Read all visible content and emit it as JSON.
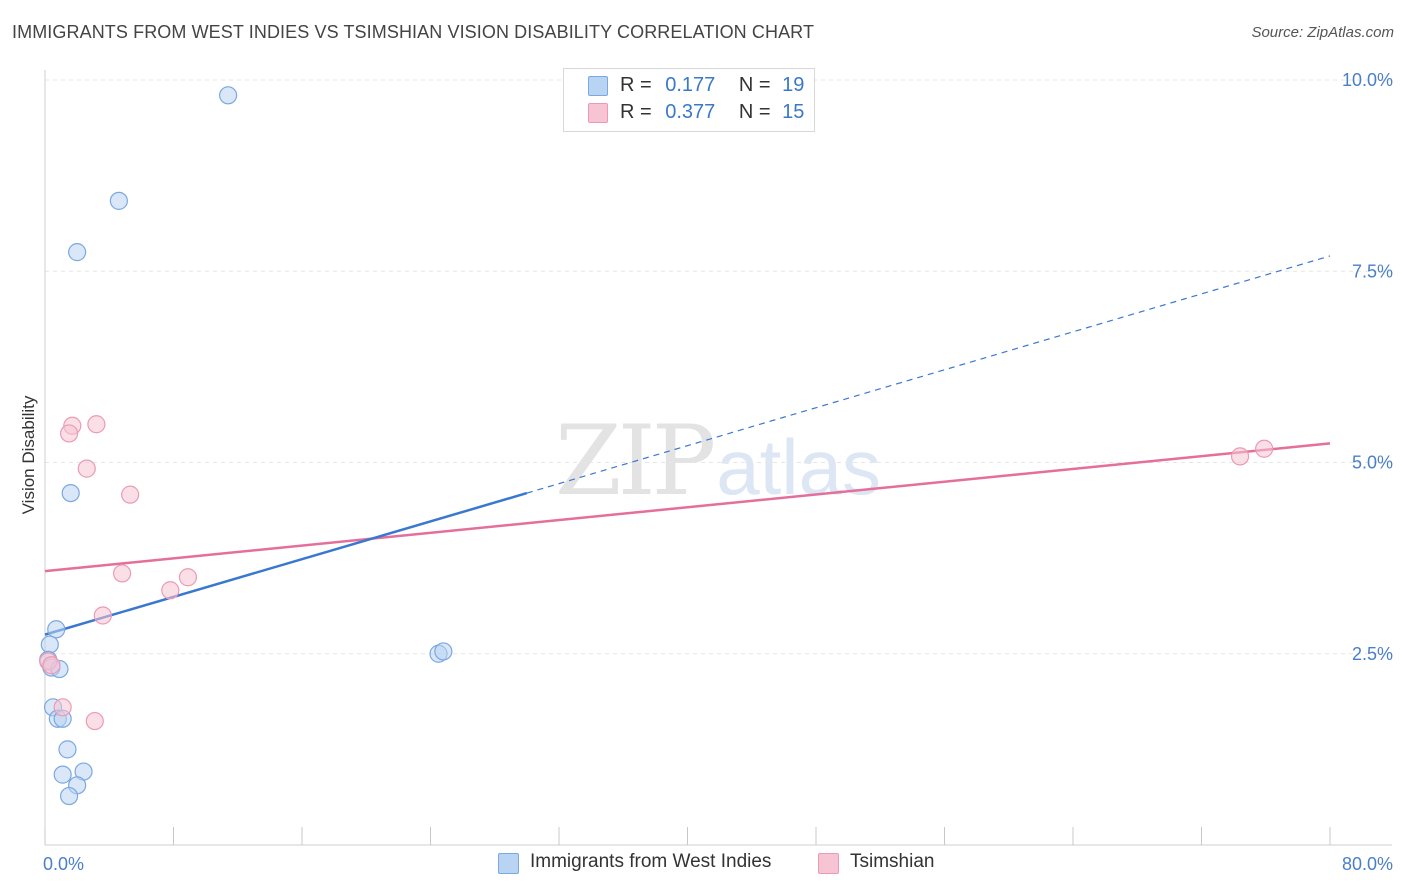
{
  "title": "IMMIGRANTS FROM WEST INDIES VS TSIMSHIAN VISION DISABILITY CORRELATION CHART",
  "source": "Source: ZipAtlas.com",
  "watermark": {
    "zip": "ZIP",
    "atlas": "atlas"
  },
  "legend": {
    "r_label": "R =",
    "n_label": "N =",
    "rows": [
      {
        "r": "0.177",
        "n": "19"
      },
      {
        "r": "0.377",
        "n": "15"
      }
    ]
  },
  "colors": {
    "blue_fill": "#b9d3f3",
    "blue_stroke": "#7aa8e0",
    "blue_line": "#3a78d0",
    "pink_fill": "#f7c4d3",
    "pink_stroke": "#ec9ab4",
    "pink_line": "#e46f9a",
    "grid": "#e6e6e6",
    "tick_text": "#4a7fc8"
  },
  "chart_data": {
    "type": "scatter",
    "title": "IMMIGRANTS FROM WEST INDIES VS TSIMSHIAN VISION DISABILITY CORRELATION CHART",
    "xlabel": "",
    "ylabel": "Vision Disability",
    "xlim": [
      0,
      80
    ],
    "ylim": [
      0,
      10
    ],
    "x_tick_labels": [
      "0.0%",
      "80.0%"
    ],
    "y_ticks": [
      2.5,
      5.0,
      7.5,
      10.0
    ],
    "y_tick_labels": [
      "2.5%",
      "5.0%",
      "7.5%",
      "10.0%"
    ],
    "grid": true,
    "legend_position": "top-center",
    "series": [
      {
        "name": "Immigrants from West Indies",
        "color": "blue",
        "points": [
          [
            11.4,
            9.8
          ],
          [
            4.6,
            8.42
          ],
          [
            2.0,
            7.75
          ],
          [
            1.6,
            4.6
          ],
          [
            0.7,
            2.82
          ],
          [
            0.3,
            2.62
          ],
          [
            0.2,
            2.42
          ],
          [
            0.4,
            2.32
          ],
          [
            0.9,
            2.3
          ],
          [
            0.5,
            1.8
          ],
          [
            0.8,
            1.65
          ],
          [
            1.1,
            1.65
          ],
          [
            1.4,
            1.25
          ],
          [
            1.1,
            0.92
          ],
          [
            2.4,
            0.96
          ],
          [
            2.0,
            0.78
          ],
          [
            1.5,
            0.64
          ],
          [
            24.5,
            2.5
          ],
          [
            24.8,
            2.53
          ]
        ],
        "trend": {
          "x": [
            0,
            30
          ],
          "y": [
            2.75,
            4.6
          ]
        },
        "trend_dashed": {
          "x": [
            30,
            80
          ],
          "y": [
            4.6,
            7.7
          ]
        }
      },
      {
        "name": "Tsimshian",
        "color": "pink",
        "points": [
          [
            1.7,
            5.48
          ],
          [
            1.5,
            5.38
          ],
          [
            3.2,
            5.5
          ],
          [
            2.6,
            4.92
          ],
          [
            5.3,
            4.58
          ],
          [
            4.8,
            3.55
          ],
          [
            8.9,
            3.5
          ],
          [
            7.8,
            3.33
          ],
          [
            3.6,
            3.0
          ],
          [
            0.2,
            2.4
          ],
          [
            0.4,
            2.35
          ],
          [
            1.1,
            1.8
          ],
          [
            3.1,
            1.62
          ],
          [
            74.4,
            5.08
          ],
          [
            75.9,
            5.18
          ]
        ],
        "trend": {
          "x": [
            0,
            80
          ],
          "y": [
            3.58,
            5.25
          ]
        }
      }
    ]
  }
}
